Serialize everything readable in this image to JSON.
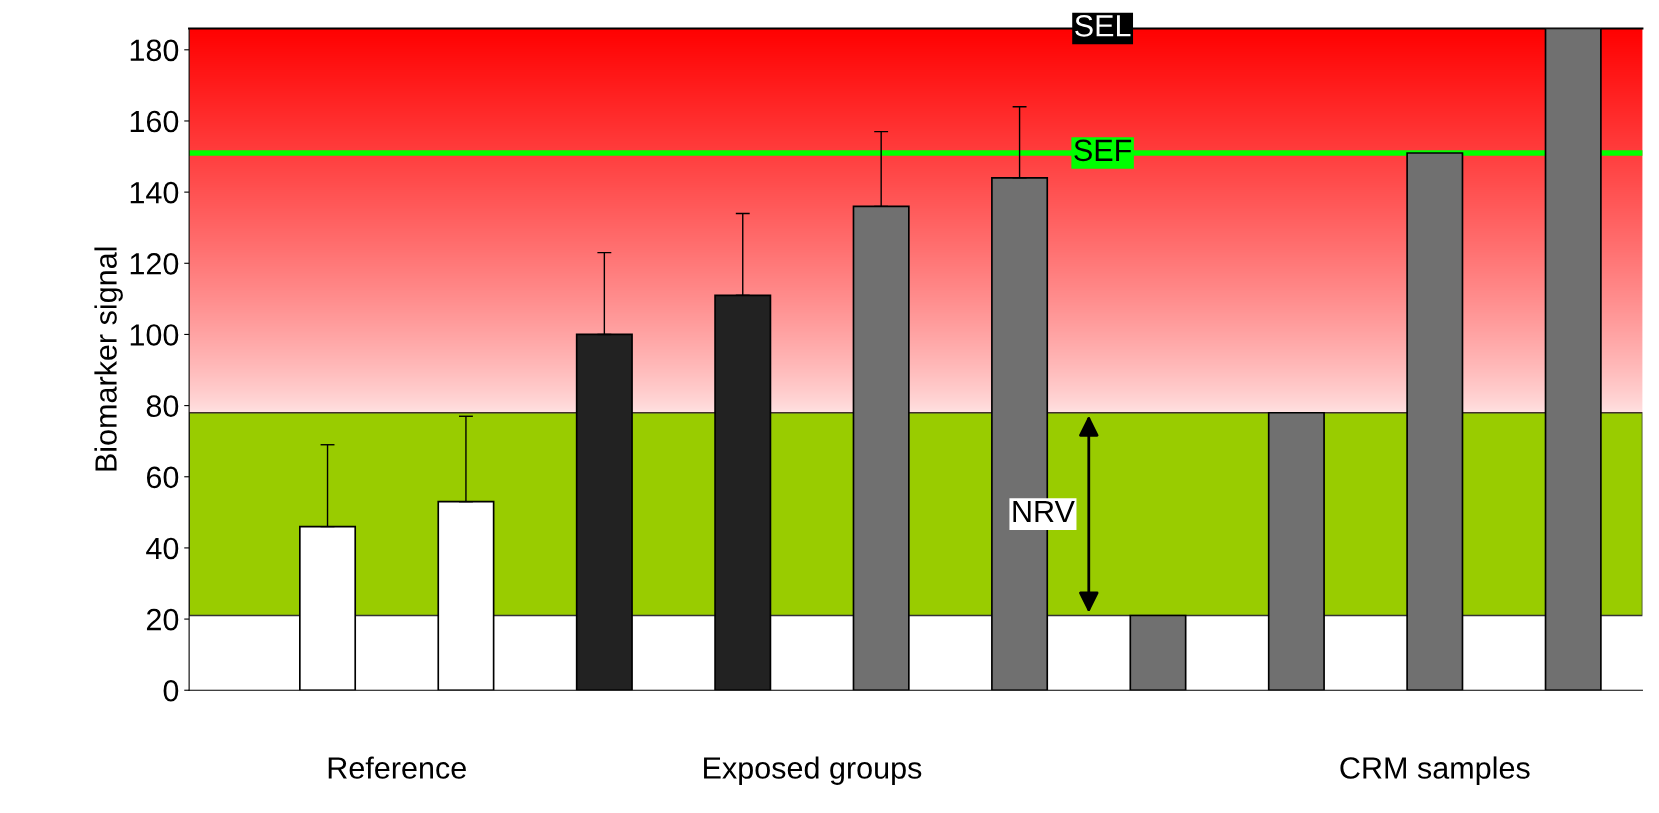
{
  "chart_data": {
    "type": "bar",
    "ylabel": "Biomarker signal",
    "categories": [
      null,
      null,
      null,
      null,
      null,
      null,
      null,
      null,
      null,
      null
    ],
    "values": [
      46,
      53,
      100,
      111,
      136,
      144,
      21,
      78,
      151,
      186
    ],
    "errors": [
      [
        46,
        69
      ],
      [
        53,
        77
      ],
      [
        100,
        123
      ],
      [
        111,
        134
      ],
      [
        136,
        157
      ],
      [
        144,
        164
      ],
      null,
      null,
      null,
      null
    ],
    "colors": [
      "#ffffff",
      "#ffffff",
      "#222222",
      "#222222",
      "#707070",
      "#707070",
      "#707070",
      "#707070",
      "#707070",
      "#707070"
    ],
    "ylim": [
      0,
      186
    ],
    "yticks": [
      0,
      20,
      40,
      60,
      80,
      100,
      120,
      140,
      160,
      180
    ],
    "bands": [
      {
        "axis": "y",
        "from": 21,
        "to": 78,
        "label": "NRV",
        "color": "#99cc00"
      },
      {
        "axis": "y",
        "from": 78,
        "to": 186,
        "color": "#ff0000"
      }
    ],
    "ref_lines": [
      {
        "axis": "y",
        "value": 151,
        "label": "SEF",
        "color": "#00ff00"
      },
      {
        "axis": "y",
        "value": 186,
        "label": "SEL",
        "color": "#000000"
      }
    ],
    "annotations": [
      "Reference",
      "Exposed groups",
      "CRM samples"
    ],
    "grid": false
  }
}
